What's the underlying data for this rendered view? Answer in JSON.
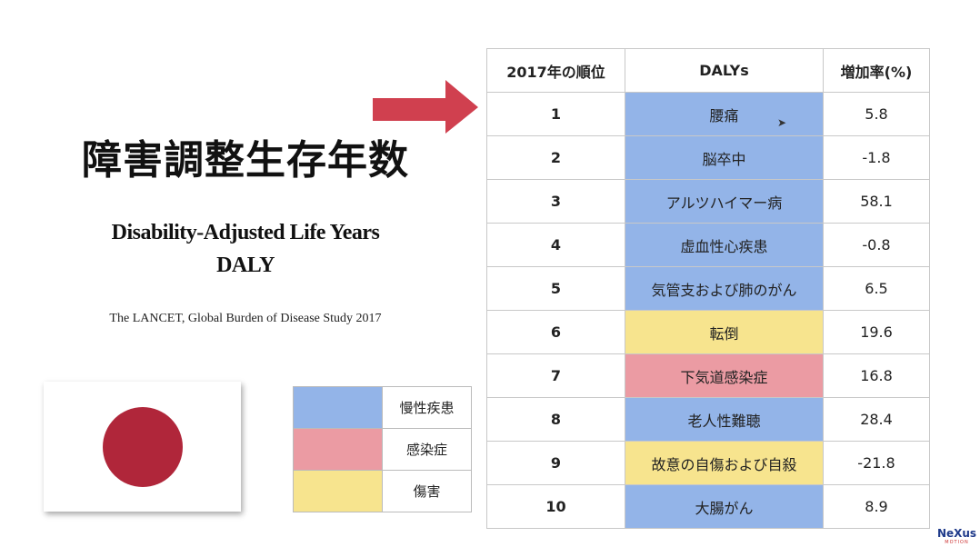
{
  "title_jp": "障害調整生存年数",
  "title_en_line1": "Disability-Adjusted Life Years",
  "title_en_line2": "DALY",
  "source": "The LANCET, Global Burden of Disease Study 2017",
  "colors": {
    "chronic": "#93b4e8",
    "infectious": "#eb9ba3",
    "injury": "#f7e48e",
    "arrow": "#d0404f",
    "flag_sun": "#b0263a"
  },
  "legend": [
    {
      "label": "慢性疾患",
      "category": "chronic"
    },
    {
      "label": "感染症",
      "category": "infectious"
    },
    {
      "label": "傷害",
      "category": "injury"
    }
  ],
  "table": {
    "headers": [
      "2017年の順位",
      "DALYs",
      "増加率(%)"
    ],
    "rows": [
      {
        "rank": "1",
        "daly": "腰痛",
        "rate": "5.8",
        "category": "chronic"
      },
      {
        "rank": "2",
        "daly": "脳卒中",
        "rate": "-1.8",
        "category": "chronic"
      },
      {
        "rank": "3",
        "daly": "アルツハイマー病",
        "rate": "58.1",
        "category": "chronic"
      },
      {
        "rank": "4",
        "daly": "虚血性心疾患",
        "rate": "-0.8",
        "category": "chronic"
      },
      {
        "rank": "5",
        "daly": "気管支および肺のがん",
        "rate": "6.5",
        "category": "chronic"
      },
      {
        "rank": "6",
        "daly": "転倒",
        "rate": "19.6",
        "category": "injury"
      },
      {
        "rank": "7",
        "daly": "下気道感染症",
        "rate": "16.8",
        "category": "infectious"
      },
      {
        "rank": "8",
        "daly": "老人性難聴",
        "rate": "28.4",
        "category": "chronic"
      },
      {
        "rank": "9",
        "daly": "故意の自傷および自殺",
        "rate": "-21.8",
        "category": "injury"
      },
      {
        "rank": "10",
        "daly": "大腸がん",
        "rate": "8.9",
        "category": "chronic"
      }
    ]
  },
  "logo": {
    "name": "NeXus",
    "sub": "MOTION"
  }
}
